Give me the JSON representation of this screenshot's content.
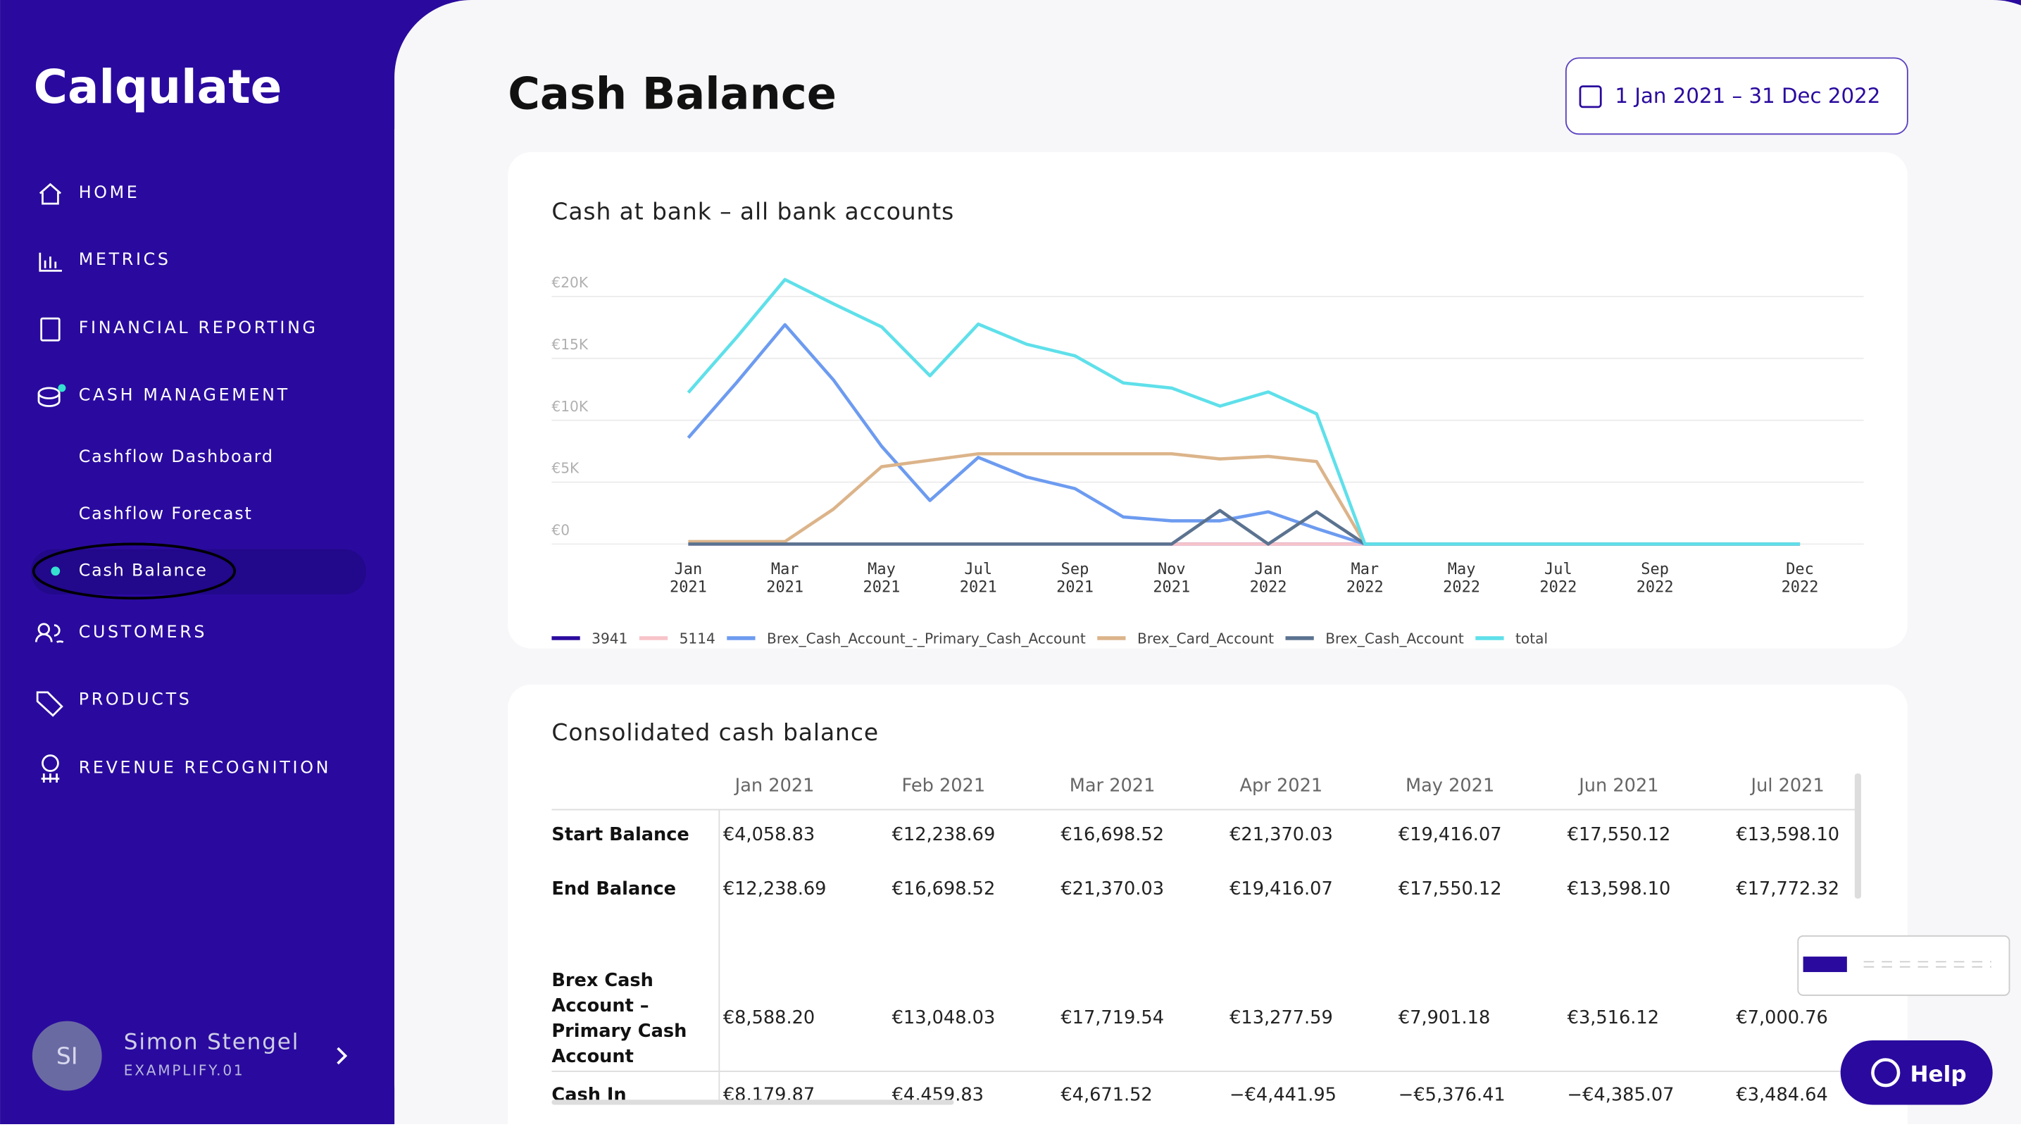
{
  "sidebar": {
    "logo": "Calqulate",
    "nav": [
      "HOME",
      "METRICS",
      "FINANCIAL REPORTING",
      "CASH MANAGEMENT"
    ],
    "sub_nav": [
      "Cashflow Dashboard",
      "Cashflow Forecast",
      "Cash Balance"
    ],
    "nav_after": [
      "CUSTOMERS",
      "PRODUCTS",
      "REVENUE RECOGNITION"
    ],
    "user": {
      "initials": "SI",
      "name": "Simon Stengel",
      "company": "EXAMPLIFY.01"
    }
  },
  "header": {
    "title": "Cash Balance",
    "date_range": "1 Jan 2021 – 31 Dec 2022"
  },
  "chart_data": {
    "type": "line",
    "title": "Cash at bank – all bank accounts",
    "categories": [
      "Jan 2021",
      null,
      "Mar 2021",
      null,
      "May 2021",
      null,
      "Jul 2021",
      null,
      "Sep 2021",
      null,
      "Nov 2021",
      null,
      "Jan 2022",
      null,
      "Mar 2022",
      null,
      "May 2022",
      null,
      "Jul 2022",
      null,
      "Sep 2022",
      null,
      null,
      "Dec 2022"
    ],
    "ylim": [
      0,
      22000
    ],
    "yticks": [
      {
        "value": 0,
        "label": "€0"
      },
      {
        "value": 5000,
        "label": "€5K"
      },
      {
        "value": 10000,
        "label": "€10K"
      },
      {
        "value": 15000,
        "label": "€15K"
      },
      {
        "value": 20000,
        "label": "€20K"
      }
    ],
    "grid": true,
    "series": [
      {
        "name": "3941",
        "color": "#2a0a9e",
        "values": [
          0,
          0,
          0,
          0,
          0,
          0,
          0,
          0,
          0,
          0,
          0,
          0,
          0,
          0,
          0,
          0,
          0,
          0,
          0,
          0,
          0,
          0,
          0,
          0
        ]
      },
      {
        "name": "5114",
        "color": "#f7c4c9",
        "values": [
          0,
          0,
          0,
          0,
          0,
          0,
          0,
          0,
          0,
          0,
          0,
          0,
          0,
          0,
          0,
          0,
          0,
          0,
          0,
          0,
          0,
          0,
          0,
          0
        ]
      },
      {
        "name": "Brex_Cash_Account_-_Primary_Cash_Account",
        "color": "#6d9bf0",
        "values": [
          8588.2,
          13048.03,
          17719.54,
          13277.59,
          7901.18,
          3516.12,
          7000.76,
          5417,
          4479,
          2188,
          1875,
          1875,
          2604,
          1250,
          0,
          0,
          0,
          0,
          0,
          0,
          0,
          0,
          0,
          0
        ]
      },
      {
        "name": "Brex_Card_Account",
        "color": "#dcb48a",
        "values": [
          200,
          200,
          200,
          2813,
          6250,
          6771,
          7292,
          7292,
          7292,
          7292,
          7292,
          6875,
          7083,
          6667,
          0,
          0,
          0,
          0,
          0,
          0,
          0,
          0,
          0,
          0
        ]
      },
      {
        "name": "Brex_Cash_Account",
        "color": "#5b7390",
        "values": [
          0,
          0,
          0,
          0,
          0,
          0,
          0,
          0,
          0,
          0,
          0,
          2708,
          0,
          2604,
          0,
          0,
          0,
          0,
          0,
          0,
          0,
          0,
          0,
          0
        ]
      },
      {
        "name": "total",
        "color": "#5fe0ea",
        "values": [
          12238.69,
          16698.52,
          21370.03,
          19416.07,
          17550.12,
          13598.1,
          17772.32,
          16146,
          15208,
          13021,
          12604,
          11146,
          12292,
          10521,
          0,
          0,
          0,
          0,
          0,
          0,
          0,
          0,
          0,
          0
        ]
      }
    ]
  },
  "table": {
    "title": "Consolidated cash balance",
    "columns": [
      "Jan 2021",
      "Feb 2021",
      "Mar 2021",
      "Apr 2021",
      "May 2021",
      "Jun 2021",
      "Jul 2021"
    ],
    "rows": [
      {
        "label": "Start Balance",
        "values": [
          "€4,058.83",
          "€12,238.69",
          "€16,698.52",
          "€21,370.03",
          "€19,416.07",
          "€17,550.12",
          "€13,598.10"
        ]
      },
      {
        "label": "End Balance",
        "values": [
          "€12,238.69",
          "€16,698.52",
          "€21,370.03",
          "€19,416.07",
          "€17,550.12",
          "€13,598.10",
          "€17,772.32"
        ]
      },
      {
        "label": "Brex Cash Account – Primary Cash Account",
        "values": [
          "€8,588.20",
          "€13,048.03",
          "€17,719.54",
          "€13,277.59",
          "€7,901.18",
          "€3,516.12",
          "€7,000.76"
        ]
      },
      {
        "label": "Cash In",
        "values": [
          "€8,179.87",
          "€4,459.83",
          "€4,671.52",
          "−€4,441.95",
          "−€5,376.41",
          "−€4,385.07",
          "€3,484.64"
        ]
      }
    ]
  },
  "help": "Help"
}
